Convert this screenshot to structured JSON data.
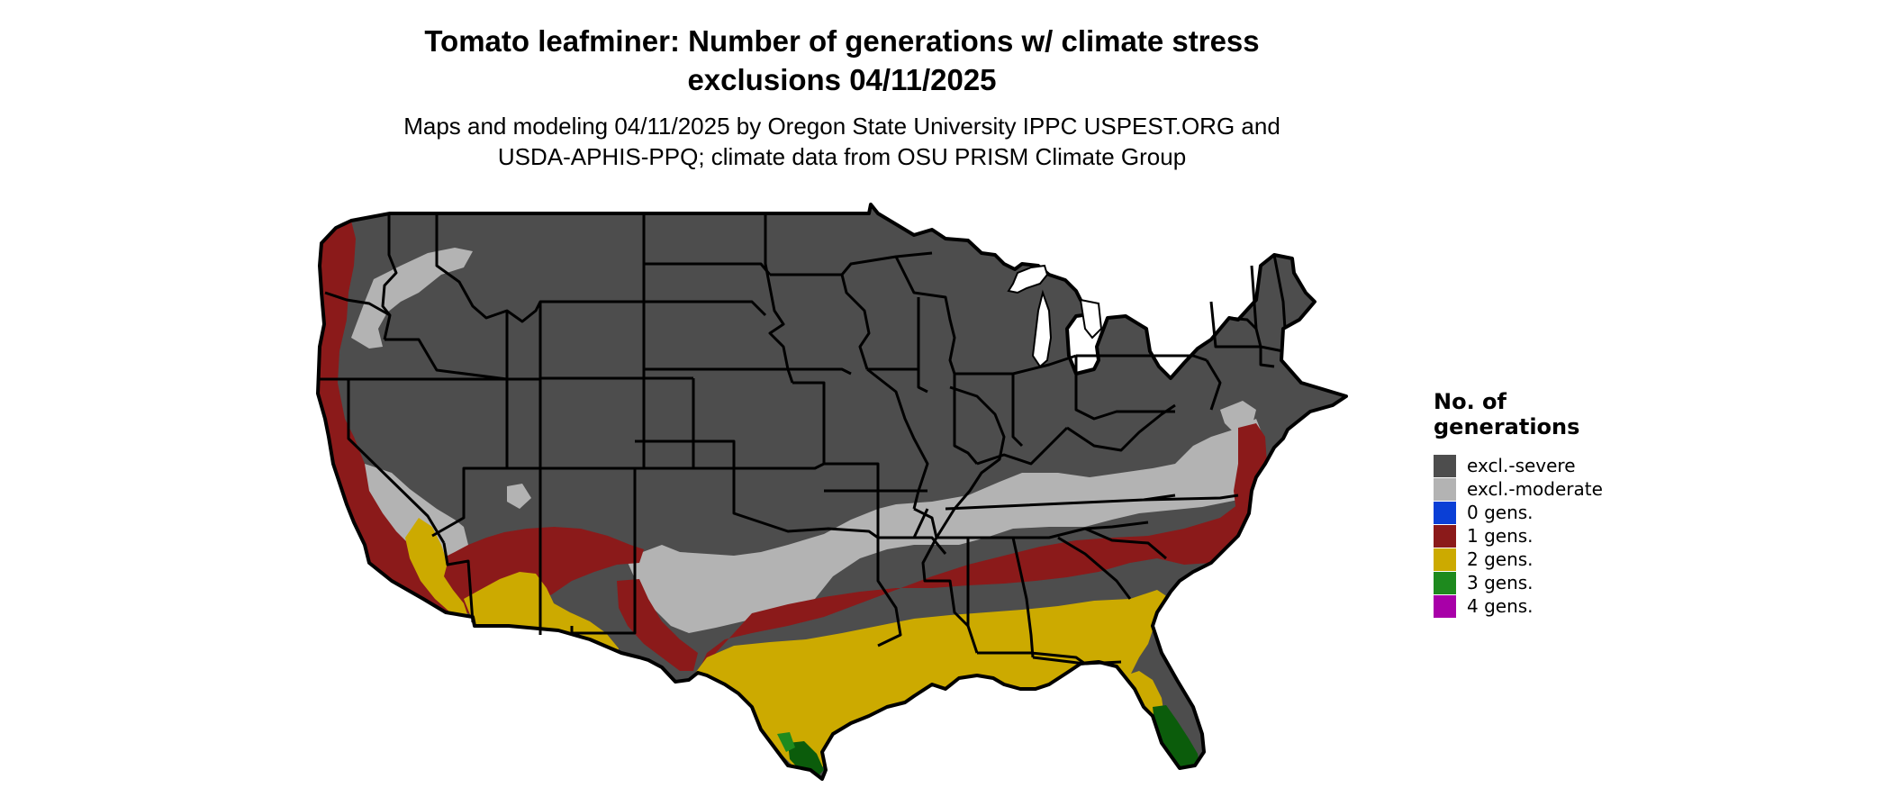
{
  "title": {
    "line1": "Tomato leafminer: Number of generations w/ climate stress",
    "line2": "exclusions 04/11/2025"
  },
  "subtitle": {
    "line1": "Maps and modeling 04/11/2025 by Oregon State University IPPC USPEST.ORG and",
    "line2": "USDA-APHIS-PPQ; climate data from OSU PRISM Climate Group"
  },
  "legend": {
    "title_line1": "No. of",
    "title_line2": "generations",
    "items": [
      {
        "label": "excl.-severe",
        "color": "#4d4d4d"
      },
      {
        "label": "excl.-moderate",
        "color": "#b3b3b3"
      },
      {
        "label": "0 gens.",
        "color": "#0a3fd6"
      },
      {
        "label": "1 gens.",
        "color": "#8b1a1a"
      },
      {
        "label": "2 gens.",
        "color": "#ccaa00"
      },
      {
        "label": "3 gens.",
        "color": "#1e8a1e"
      },
      {
        "label": "4 gens.",
        "color": "#a800a8"
      }
    ]
  },
  "map": {
    "region": "Contiguous United States",
    "colors": {
      "severe": "#4d4d4d",
      "moderate": "#b3b3b3",
      "one_gen": "#8b1a1a",
      "two_gen": "#ccaa00",
      "three_gen": "#1e6e1e",
      "three_gen_dark": "#0b5c0b",
      "border": "#000000"
    }
  }
}
